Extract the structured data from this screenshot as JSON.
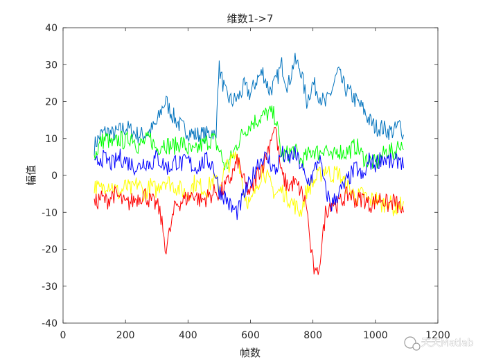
{
  "chart_data": {
    "type": "line",
    "title": "维数1->7",
    "xlabel": "帧数",
    "ylabel": "幅值",
    "xlim": [
      0,
      1200
    ],
    "ylim": [
      -40,
      40
    ],
    "xticks": [
      "0",
      "200",
      "400",
      "600",
      "800",
      "1000",
      "1200"
    ],
    "yticks": [
      "40",
      "30",
      "20",
      "10",
      "0",
      "-10",
      "-20",
      "-30",
      "-40"
    ],
    "grid": false,
    "series": [
      {
        "color": "#0072BD",
        "x": [
          100,
          120,
          140,
          160,
          180,
          200,
          220,
          240,
          260,
          280,
          300,
          320,
          330,
          340,
          360,
          380,
          400,
          420,
          440,
          460,
          480,
          490,
          495,
          500,
          520,
          540,
          560,
          580,
          600,
          620,
          640,
          660,
          680,
          700,
          720,
          740,
          760,
          780,
          800,
          820,
          840,
          860,
          880,
          900,
          920,
          940,
          960,
          980,
          1000,
          1020,
          1040,
          1060,
          1080,
          1090
        ],
        "y": [
          8,
          11,
          12,
          11,
          12,
          13,
          12,
          11,
          11,
          12,
          14,
          19,
          20,
          18,
          15,
          13,
          12,
          11,
          11,
          11,
          12,
          9,
          25,
          29,
          22,
          20,
          21,
          24,
          22,
          26,
          28,
          23,
          25,
          30,
          24,
          31,
          29,
          20,
          25,
          22,
          19,
          23,
          28,
          24,
          22,
          20,
          18,
          15,
          13,
          13,
          12,
          12,
          14,
          11
        ]
      },
      {
        "color": "#00FF00",
        "x": [
          100,
          120,
          140,
          160,
          180,
          200,
          220,
          240,
          260,
          280,
          300,
          320,
          340,
          360,
          380,
          400,
          420,
          440,
          460,
          480,
          500,
          520,
          540,
          560,
          580,
          600,
          620,
          640,
          660,
          680,
          700,
          720,
          740,
          760,
          780,
          800,
          820,
          840,
          860,
          880,
          900,
          920,
          940,
          960,
          980,
          1000,
          1020,
          1040,
          1060,
          1080,
          1090
        ],
        "y": [
          5,
          9,
          10,
          8,
          10,
          9,
          11,
          8,
          9,
          10,
          7,
          9,
          8,
          8,
          9,
          7,
          6,
          8,
          9,
          10,
          7,
          2,
          5,
          9,
          12,
          14,
          15,
          16,
          17,
          16,
          5,
          6,
          7,
          4,
          5,
          7,
          6,
          8,
          4,
          7,
          6,
          7,
          8,
          5,
          4,
          3,
          5,
          7,
          6,
          9,
          7
        ]
      },
      {
        "color": "#FFFF00",
        "x": [
          100,
          120,
          140,
          160,
          180,
          200,
          220,
          240,
          260,
          280,
          300,
          320,
          340,
          360,
          380,
          400,
          420,
          440,
          460,
          480,
          500,
          520,
          540,
          560,
          580,
          600,
          620,
          640,
          660,
          680,
          700,
          720,
          740,
          760,
          780,
          800,
          820,
          840,
          860,
          880,
          900,
          920,
          940,
          960,
          980,
          1000,
          1020,
          1040,
          1060,
          1080,
          1090
        ],
        "y": [
          -3,
          -4,
          -2,
          -3,
          -5,
          -3,
          -4,
          -2,
          -5,
          -3,
          -4,
          -1,
          -2,
          -3,
          -4,
          -5,
          -2,
          -3,
          -4,
          -1,
          -3,
          2,
          4,
          6,
          -5,
          -8,
          -3,
          2,
          -2,
          -5,
          -4,
          -6,
          -8,
          -10,
          -4,
          -2,
          0,
          2,
          0,
          1,
          -2,
          -4,
          -6,
          -5,
          -7,
          -6,
          -8,
          -7,
          -9,
          -8,
          -7
        ]
      },
      {
        "color": "#FF0000",
        "x": [
          100,
          120,
          140,
          160,
          180,
          200,
          220,
          240,
          260,
          280,
          300,
          310,
          320,
          330,
          340,
          350,
          360,
          380,
          400,
          420,
          440,
          460,
          480,
          490,
          500,
          520,
          540,
          560,
          580,
          600,
          620,
          640,
          660,
          670,
          680,
          690,
          700,
          720,
          740,
          760,
          780,
          790,
          800,
          810,
          820,
          830,
          840,
          860,
          880,
          900,
          920,
          940,
          960,
          980,
          1000,
          1020,
          1040,
          1060,
          1080,
          1090
        ],
        "y": [
          -8,
          -6,
          -7,
          -5,
          -6,
          -8,
          -7,
          -6,
          -5,
          -7,
          -8,
          -10,
          -15,
          -20,
          -16,
          -12,
          -8,
          -7,
          -6,
          -5,
          -7,
          -6,
          -5,
          -4,
          -5,
          -3,
          0,
          4,
          -2,
          -5,
          0,
          3,
          8,
          12,
          13,
          6,
          0,
          -3,
          -2,
          -4,
          -8,
          -18,
          -24,
          -28,
          -24,
          -18,
          -10,
          -7,
          -8,
          -6,
          -5,
          -7,
          -6,
          -8,
          -7,
          -6,
          -8,
          -7,
          -9,
          -10
        ]
      },
      {
        "color": "#0000FF",
        "x": [
          100,
          120,
          140,
          160,
          180,
          200,
          220,
          240,
          260,
          280,
          300,
          320,
          340,
          360,
          380,
          400,
          420,
          440,
          460,
          480,
          500,
          520,
          540,
          560,
          580,
          600,
          620,
          640,
          660,
          680,
          700,
          720,
          740,
          760,
          780,
          800,
          820,
          840,
          860,
          880,
          900,
          920,
          940,
          960,
          980,
          1000,
          1020,
          1040,
          1060,
          1080,
          1090
        ],
        "y": [
          2,
          5,
          4,
          3,
          5,
          4,
          3,
          2,
          4,
          3,
          5,
          3,
          2,
          4,
          3,
          4,
          2,
          3,
          4,
          3,
          -4,
          -6,
          -9,
          -10,
          -5,
          -2,
          3,
          5,
          4,
          1,
          6,
          4,
          6,
          3,
          -2,
          0,
          5,
          -4,
          -8,
          -5,
          -3,
          0,
          2,
          -1,
          4,
          3,
          5,
          4,
          3,
          5,
          2
        ]
      }
    ],
    "watermark": "天天Matlab"
  }
}
